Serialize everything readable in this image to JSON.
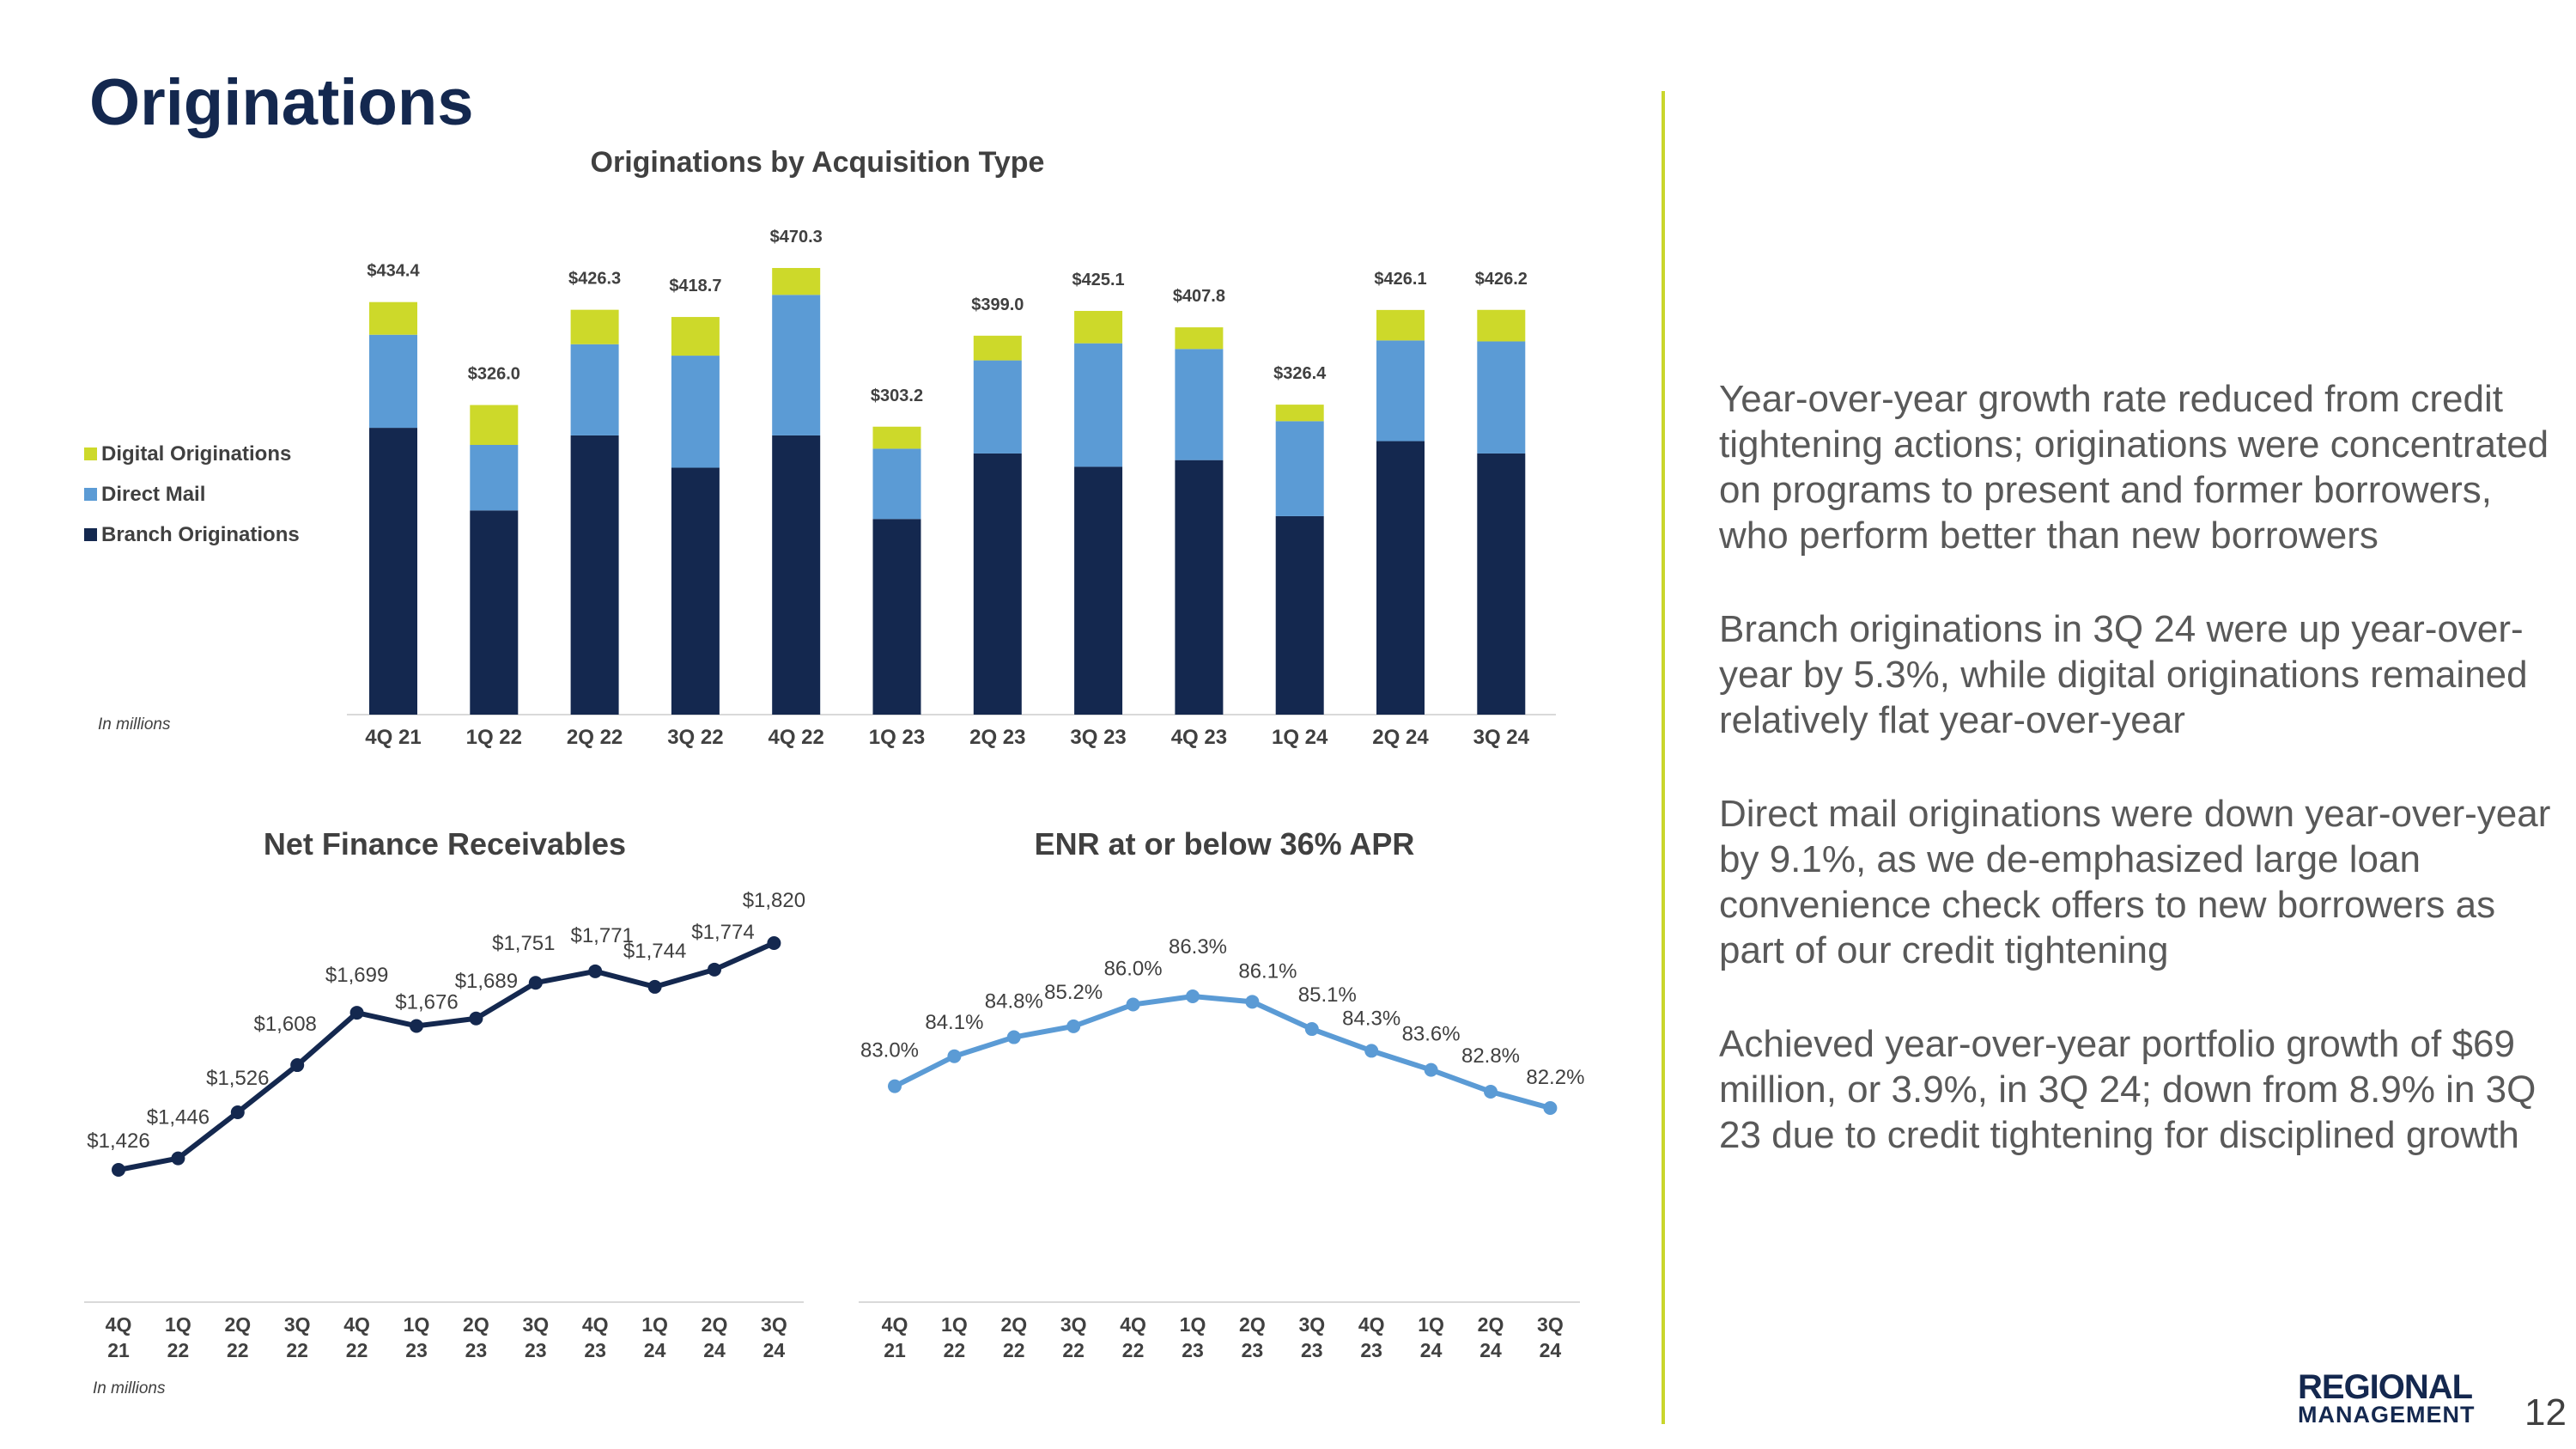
{
  "page": {
    "title": "Originations",
    "page_number": "12",
    "logo": {
      "line1": "REGIONAL",
      "line2": "MANAGEMENT"
    }
  },
  "chart_data": [
    {
      "id": "originations",
      "type": "bar",
      "stacked": true,
      "title": "Originations by Acquisition Type",
      "units_note": "In millions",
      "categories": [
        "4Q 21",
        "1Q 22",
        "2Q 22",
        "3Q 22",
        "4Q 22",
        "1Q 23",
        "2Q 23",
        "3Q 23",
        "4Q 23",
        "1Q 24",
        "2Q 24",
        "3Q 24"
      ],
      "totals": [
        434.4,
        326.0,
        426.3,
        418.7,
        470.3,
        303.2,
        399.0,
        425.1,
        407.8,
        326.4,
        426.1,
        426.2
      ],
      "total_labels": [
        "$434.4",
        "$326.0",
        "$426.3",
        "$418.7",
        "$470.3",
        "$303.2",
        "$399.0",
        "$425.1",
        "$407.8",
        "$326.4",
        "$426.1",
        "$426.2"
      ],
      "series": [
        {
          "name": "Branch Originations",
          "color": "#14284f",
          "values": [
            302,
            215,
            294,
            260,
            294,
            206,
            275,
            261,
            268,
            209,
            288,
            275
          ]
        },
        {
          "name": "Direct Mail",
          "color": "#5b9bd5",
          "values": [
            98,
            69,
            96,
            118,
            148,
            74,
            98,
            130,
            117,
            100,
            106,
            118
          ]
        },
        {
          "name": "Digital Originations",
          "color": "#cdd92a",
          "values": [
            34.4,
            42.0,
            36.3,
            40.7,
            28.3,
            23.2,
            26.0,
            34.1,
            22.8,
            17.4,
            32.1,
            33.2
          ]
        }
      ],
      "legend_order": [
        "Digital Originations",
        "Direct Mail",
        "Branch Originations"
      ],
      "ylim": [
        0,
        470.3
      ]
    },
    {
      "id": "nfr",
      "type": "line",
      "title": "Net Finance Receivables",
      "units_note": "In millions",
      "categories": [
        [
          "4Q",
          "21"
        ],
        [
          "1Q",
          "22"
        ],
        [
          "2Q",
          "22"
        ],
        [
          "3Q",
          "22"
        ],
        [
          "4Q",
          "22"
        ],
        [
          "1Q",
          "23"
        ],
        [
          "2Q",
          "23"
        ],
        [
          "3Q",
          "23"
        ],
        [
          "4Q",
          "23"
        ],
        [
          "1Q",
          "24"
        ],
        [
          "2Q",
          "24"
        ],
        [
          "3Q",
          "24"
        ]
      ],
      "values": [
        1426,
        1446,
        1526,
        1608,
        1699,
        1676,
        1689,
        1751,
        1771,
        1744,
        1774,
        1820
      ],
      "labels": [
        "$1,426",
        "$1,446",
        "$1,526",
        "$1,608",
        "$1,699",
        "$1,676",
        "$1,689",
        "$1,751",
        "$1,771",
        "$1,744",
        "$1,774",
        "$1,820"
      ],
      "color": "#14284f",
      "ylim": [
        1426,
        1820
      ]
    },
    {
      "id": "enr",
      "type": "line",
      "title": "ENR at or below 36% APR",
      "categories": [
        [
          "4Q",
          "21"
        ],
        [
          "1Q",
          "22"
        ],
        [
          "2Q",
          "22"
        ],
        [
          "3Q",
          "22"
        ],
        [
          "4Q",
          "22"
        ],
        [
          "1Q",
          "23"
        ],
        [
          "2Q",
          "23"
        ],
        [
          "3Q",
          "23"
        ],
        [
          "4Q",
          "23"
        ],
        [
          "1Q",
          "24"
        ],
        [
          "2Q",
          "24"
        ],
        [
          "3Q",
          "24"
        ]
      ],
      "values": [
        83.0,
        84.1,
        84.8,
        85.2,
        86.0,
        86.3,
        86.1,
        85.1,
        84.3,
        83.6,
        82.8,
        82.2
      ],
      "labels": [
        "83.0%",
        "84.1%",
        "84.8%",
        "85.2%",
        "86.0%",
        "86.3%",
        "86.1%",
        "85.1%",
        "84.3%",
        "83.6%",
        "82.8%",
        "82.2%"
      ],
      "color": "#5b9bd5",
      "ylim": [
        82.2,
        86.3
      ]
    }
  ],
  "bullets": [
    "Year-over-year growth rate reduced from credit tightening actions; originations were concentrated on programs to present and former borrowers, who perform better than new borrowers",
    "Branch originations in 3Q 24 were up year-over-year by 5.3%, while digital originations remained relatively flat year-over-year",
    "Direct mail originations were down year-over-year by 9.1%, as we de-emphasized large loan convenience check offers to new borrowers as part of our credit tightening",
    "Achieved year-over-year portfolio growth of $69 million, or 3.9%, in 3Q 24; down from 8.9% in 3Q 23 due to credit tightening for disciplined growth"
  ]
}
